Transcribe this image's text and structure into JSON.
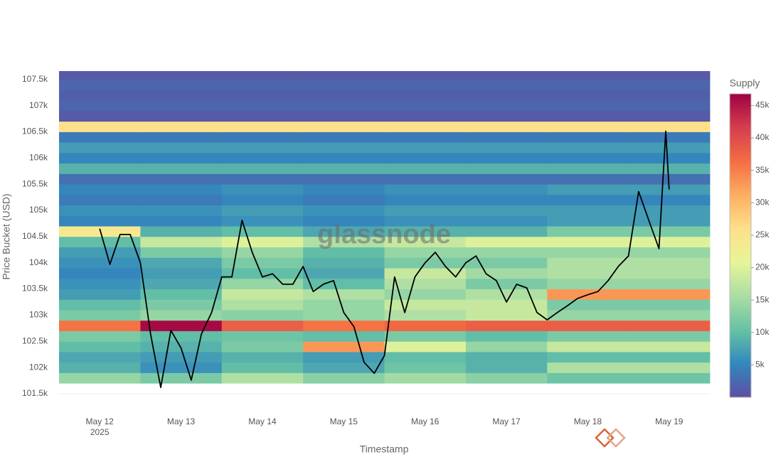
{
  "chart_data": {
    "type": "heatmap",
    "watermark": "glassnode",
    "xlabel": "Timestamp",
    "ylabel": "Price Bucket (USD)",
    "colorbar_title": "Supply",
    "xlim": [
      "2025-05-11 12:00",
      "2025-05-19 12:00"
    ],
    "xticks": [
      {
        "value": "2025-05-12 00:00",
        "label": "May 12"
      },
      {
        "value": "2025-05-13 00:00",
        "label": "May 13"
      },
      {
        "value": "2025-05-14 00:00",
        "label": "May 14"
      },
      {
        "value": "2025-05-15 00:00",
        "label": "May 15"
      },
      {
        "value": "2025-05-16 00:00",
        "label": "May 16"
      },
      {
        "value": "2025-05-17 00:00",
        "label": "May 17"
      },
      {
        "value": "2025-05-18 00:00",
        "label": "May 18"
      },
      {
        "value": "2025-05-19 00:00",
        "label": "May 19"
      }
    ],
    "xtick_year": "2025",
    "ylim": [
      101350,
      107660
    ],
    "yticks": [
      {
        "value": 101500,
        "label": "101.5k"
      },
      {
        "value": 102000,
        "label": "102k"
      },
      {
        "value": 102500,
        "label": "102.5k"
      },
      {
        "value": 103000,
        "label": "103k"
      },
      {
        "value": 103500,
        "label": "103.5k"
      },
      {
        "value": 104000,
        "label": "104k"
      },
      {
        "value": 104500,
        "label": "104.5k"
      },
      {
        "value": 105000,
        "label": "105k"
      },
      {
        "value": 105500,
        "label": "105.5k"
      },
      {
        "value": 106000,
        "label": "106k"
      },
      {
        "value": 106500,
        "label": "106.5k"
      },
      {
        "value": 107000,
        "label": "107k"
      },
      {
        "value": 107500,
        "label": "107.5k"
      }
    ],
    "zlim": [
      0,
      46800
    ],
    "zticks": [
      {
        "value": 5000,
        "label": "5k"
      },
      {
        "value": 10000,
        "label": "10k"
      },
      {
        "value": 15000,
        "label": "15k"
      },
      {
        "value": 20000,
        "label": "20k"
      },
      {
        "value": 25000,
        "label": "25k"
      },
      {
        "value": 30000,
        "label": "30k"
      },
      {
        "value": 35000,
        "label": "35k"
      },
      {
        "value": 40000,
        "label": "40k"
      },
      {
        "value": 45000,
        "label": "45k"
      }
    ],
    "colorscale": [
      "#5e4fa2",
      "#3288bd",
      "#66c2a5",
      "#abdda4",
      "#e6f598",
      "#fee08b",
      "#fdae61",
      "#f46d43",
      "#d53e4f",
      "#9e0142"
    ],
    "x": [
      "2025-05-12 00:00",
      "2025-05-13 00:00",
      "2025-05-14 00:00",
      "2025-05-15 00:00",
      "2025-05-16 00:00",
      "2025-05-17 00:00",
      "2025-05-18 00:00",
      "2025-05-19 00:00"
    ],
    "y": [
      101800,
      102000,
      102200,
      102400,
      102600,
      102800,
      103000,
      103200,
      103400,
      103600,
      103800,
      104000,
      104200,
      104400,
      104600,
      104800,
      105000,
      105200,
      105400,
      105600,
      105800,
      106000,
      106200,
      106400,
      106600,
      106800,
      107000,
      107200,
      107400,
      107600
    ],
    "bucket_size": 200,
    "z": [
      [
        14000,
        12000,
        16000,
        13000,
        15000,
        13000,
        11000,
        11000
      ],
      [
        9000,
        6000,
        10000,
        8000,
        11000,
        9000,
        16000,
        16000
      ],
      [
        8000,
        7000,
        9000,
        7000,
        10000,
        9000,
        10000,
        10000
      ],
      [
        10000,
        9000,
        12000,
        33000,
        20000,
        14000,
        18000,
        18000
      ],
      [
        12000,
        10000,
        11000,
        10000,
        12000,
        10000,
        12000,
        12000
      ],
      [
        36000,
        46000,
        38000,
        36000,
        37000,
        38000,
        38000,
        38000
      ],
      [
        12000,
        14000,
        13000,
        14000,
        16000,
        18000,
        14000,
        14000
      ],
      [
        10000,
        12000,
        16000,
        14000,
        18000,
        18000,
        12000,
        12000
      ],
      [
        7000,
        10000,
        18000,
        16000,
        14000,
        16000,
        33000,
        33000
      ],
      [
        6000,
        8000,
        14000,
        10000,
        16000,
        12000,
        14000,
        14000
      ],
      [
        5000,
        7000,
        10000,
        8000,
        18000,
        15000,
        16000,
        16000
      ],
      [
        6000,
        8000,
        12000,
        9000,
        12000,
        12000,
        16000,
        16000
      ],
      [
        7000,
        12000,
        14000,
        10000,
        14000,
        14000,
        14000,
        14000
      ],
      [
        10000,
        18000,
        20000,
        16000,
        18000,
        20000,
        20000,
        20000
      ],
      [
        24000,
        9000,
        10000,
        8000,
        9000,
        9000,
        12000,
        12000
      ],
      [
        5000,
        5000,
        6000,
        5000,
        6000,
        6000,
        7000,
        7000
      ],
      [
        6000,
        6000,
        7000,
        6000,
        7000,
        7000,
        7000,
        7000
      ],
      [
        4000,
        4000,
        5000,
        4000,
        5000,
        5000,
        5000,
        5000
      ],
      [
        5000,
        5000,
        6000,
        5000,
        6000,
        6000,
        7000,
        7000
      ],
      [
        3000,
        3000,
        3000,
        3000,
        3000,
        3000,
        3000,
        3000
      ],
      [
        9000,
        9000,
        9000,
        9000,
        9000,
        9000,
        9000,
        9000
      ],
      [
        5000,
        5000,
        5000,
        5000,
        5000,
        5000,
        5000,
        5000
      ],
      [
        7000,
        7000,
        7000,
        7000,
        7000,
        7000,
        7000,
        7000
      ],
      [
        4000,
        4000,
        4000,
        4000,
        4000,
        4000,
        4000,
        4000
      ],
      [
        26000,
        26000,
        26000,
        26000,
        26000,
        26000,
        26000,
        26000
      ],
      [
        1000,
        1000,
        1000,
        1000,
        1000,
        1000,
        1000,
        1000
      ],
      [
        2000,
        2000,
        2000,
        2000,
        2000,
        2000,
        2000,
        2000
      ],
      [
        1500,
        1500,
        1500,
        1500,
        1500,
        1500,
        1500,
        1500
      ],
      [
        2000,
        2000,
        2000,
        2000,
        2000,
        2000,
        2000,
        2000
      ],
      [
        1000,
        1000,
        1000,
        1000,
        1000,
        1000,
        1000,
        1000
      ]
    ],
    "line": {
      "color": "#000000",
      "x": [
        "2025-05-12 00:00",
        "2025-05-12 03:00",
        "2025-05-12 06:00",
        "2025-05-12 09:00",
        "2025-05-12 12:00",
        "2025-05-12 15:00",
        "2025-05-12 18:00",
        "2025-05-12 21:00",
        "2025-05-13 00:00",
        "2025-05-13 03:00",
        "2025-05-13 06:00",
        "2025-05-13 09:00",
        "2025-05-13 12:00",
        "2025-05-13 15:00",
        "2025-05-13 18:00",
        "2025-05-13 21:00",
        "2025-05-14 00:00",
        "2025-05-14 03:00",
        "2025-05-14 06:00",
        "2025-05-14 09:00",
        "2025-05-14 12:00",
        "2025-05-14 15:00",
        "2025-05-14 18:00",
        "2025-05-14 21:00",
        "2025-05-15 00:00",
        "2025-05-15 03:00",
        "2025-05-15 06:00",
        "2025-05-15 09:00",
        "2025-05-15 12:00",
        "2025-05-15 15:00",
        "2025-05-15 18:00",
        "2025-05-15 21:00",
        "2025-05-16 00:00",
        "2025-05-16 03:00",
        "2025-05-16 06:00",
        "2025-05-16 09:00",
        "2025-05-16 12:00",
        "2025-05-16 15:00",
        "2025-05-16 18:00",
        "2025-05-16 21:00",
        "2025-05-17 00:00",
        "2025-05-17 03:00",
        "2025-05-17 06:00",
        "2025-05-17 09:00",
        "2025-05-17 12:00",
        "2025-05-17 15:00",
        "2025-05-17 18:00",
        "2025-05-17 21:00",
        "2025-05-18 00:00",
        "2025-05-18 03:00",
        "2025-05-18 06:00",
        "2025-05-18 09:00",
        "2025-05-18 12:00",
        "2025-05-18 15:00",
        "2025-05-18 18:00",
        "2025-05-18 21:00",
        "2025-05-18 23:00",
        "2025-05-19 00:00"
      ],
      "values": [
        104650,
        103970,
        104540,
        104540,
        104000,
        102640,
        101620,
        102710,
        102370,
        101760,
        102640,
        103050,
        103730,
        103730,
        104810,
        104200,
        103730,
        103790,
        103590,
        103590,
        103930,
        103450,
        103590,
        103660,
        103050,
        102780,
        102100,
        101890,
        102230,
        103730,
        103050,
        103730,
        104000,
        104200,
        103930,
        103730,
        104000,
        104130,
        103790,
        103660,
        103250,
        103590,
        103520,
        103050,
        102910,
        103050,
        103180,
        103320,
        103390,
        103450,
        103660,
        103930,
        104130,
        105360,
        104810,
        104270,
        106510,
        105400
      ]
    }
  }
}
